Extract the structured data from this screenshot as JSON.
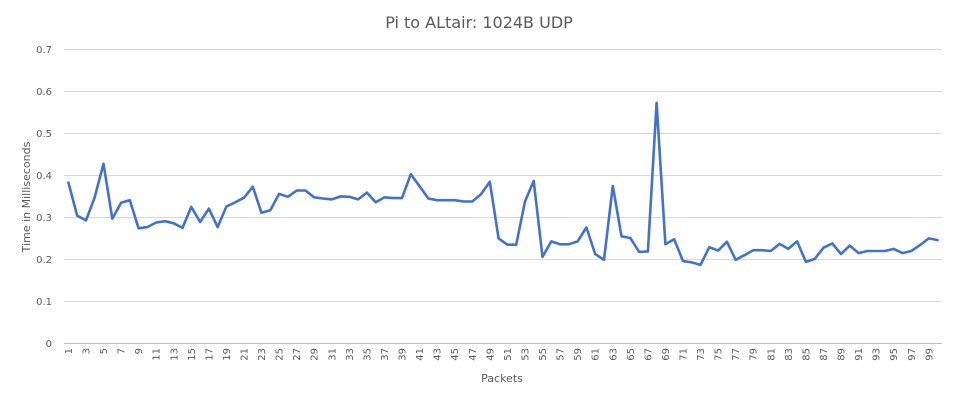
{
  "chart_data": {
    "type": "line",
    "title": "Pi to ALtair: 1024B UDP",
    "xlabel": "Packets",
    "ylabel": "Time in Milliseconds",
    "ylim": [
      0,
      0.7
    ],
    "yticks": [
      "0",
      "0.1",
      "0.2",
      "0.3",
      "0.4",
      "0.5",
      "0.6",
      "0.7"
    ],
    "grid": true,
    "legend": "none",
    "series_color": "#4472c4",
    "x": [
      1,
      2,
      3,
      4,
      5,
      6,
      7,
      8,
      9,
      10,
      11,
      12,
      13,
      14,
      15,
      16,
      17,
      18,
      19,
      20,
      21,
      22,
      23,
      24,
      25,
      26,
      27,
      28,
      29,
      30,
      31,
      32,
      33,
      34,
      35,
      36,
      37,
      38,
      39,
      40,
      41,
      42,
      43,
      44,
      45,
      46,
      47,
      48,
      49,
      50,
      51,
      52,
      53,
      54,
      55,
      56,
      57,
      58,
      59,
      60,
      61,
      62,
      63,
      64,
      65,
      66,
      67,
      68,
      69,
      70,
      71,
      72,
      73,
      74,
      75,
      76,
      77,
      78,
      79,
      80,
      81,
      82,
      83,
      84,
      85,
      86,
      87,
      88,
      89,
      90,
      91,
      92,
      93,
      94,
      95,
      96,
      97,
      98,
      99,
      100
    ],
    "xtick_labels": [
      "1",
      "3",
      "5",
      "7",
      "9",
      "11",
      "13",
      "15",
      "17",
      "19",
      "21",
      "23",
      "25",
      "27",
      "29",
      "31",
      "33",
      "35",
      "37",
      "39",
      "41",
      "43",
      "45",
      "47",
      "49",
      "51",
      "53",
      "55",
      "57",
      "59",
      "61",
      "63",
      "65",
      "67",
      "69",
      "71",
      "73",
      "75",
      "77",
      "79",
      "81",
      "83",
      "85",
      "87",
      "89",
      "91",
      "93",
      "95",
      "97",
      "99"
    ],
    "series": [
      {
        "values": [
          0.382,
          0.303,
          0.292,
          0.347,
          0.427,
          0.296,
          0.334,
          0.34,
          0.273,
          0.276,
          0.287,
          0.29,
          0.285,
          0.274,
          0.324,
          0.288,
          0.32,
          0.276,
          0.325,
          0.335,
          0.346,
          0.372,
          0.31,
          0.316,
          0.355,
          0.348,
          0.363,
          0.363,
          0.347,
          0.344,
          0.342,
          0.349,
          0.348,
          0.342,
          0.358,
          0.335,
          0.347,
          0.345,
          0.345,
          0.402,
          0.373,
          0.344,
          0.34,
          0.34,
          0.34,
          0.337,
          0.337,
          0.354,
          0.384,
          0.249,
          0.234,
          0.234,
          0.337,
          0.386,
          0.205,
          0.242,
          0.235,
          0.235,
          0.242,
          0.275,
          0.212,
          0.198,
          0.374,
          0.254,
          0.25,
          0.217,
          0.218,
          0.572,
          0.235,
          0.247,
          0.195,
          0.192,
          0.186,
          0.228,
          0.22,
          0.241,
          0.198,
          0.209,
          0.221,
          0.221,
          0.219,
          0.236,
          0.224,
          0.242,
          0.193,
          0.2,
          0.227,
          0.237,
          0.212,
          0.232,
          0.214,
          0.219,
          0.219,
          0.219,
          0.224,
          0.214,
          0.219,
          0.233,
          0.249,
          0.245
        ]
      }
    ]
  }
}
